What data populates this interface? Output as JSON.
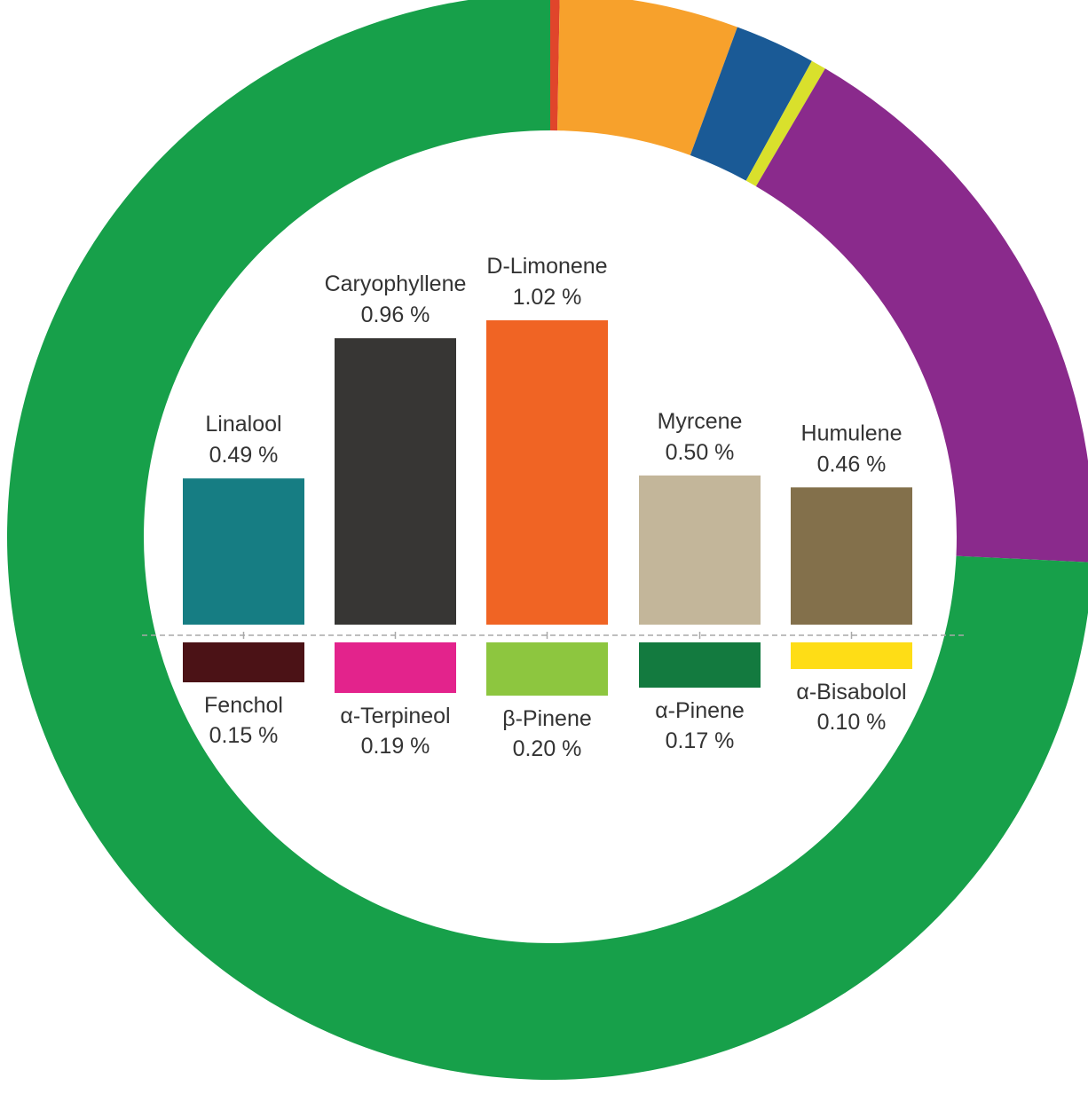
{
  "chart_data": [
    {
      "type": "pie",
      "variant": "donut",
      "title": "",
      "slices": [
        {
          "value": 0.28,
          "color": "#e0452b"
        },
        {
          "value": 5.32,
          "color": "#f7a12c"
        },
        {
          "value": 2.4,
          "color": "#1a5a96"
        },
        {
          "value": 0.45,
          "color": "#d9e02c"
        },
        {
          "value": 17.3,
          "color": "#8a2a8c"
        },
        {
          "value": 74.25,
          "color": "#17a04a"
        }
      ]
    },
    {
      "type": "bar",
      "title": "",
      "xlabel": "",
      "ylabel": "",
      "unit": "%",
      "grid": false,
      "baseline": "dashed",
      "layout": "diverging",
      "ylim_up": [
        0,
        1.02
      ],
      "ylim_down": [
        0,
        0.2
      ],
      "upper": {
        "categories": [
          "Linalool",
          "Caryophyllene",
          "D-Limonene",
          "Myrcene",
          "Humulene"
        ],
        "values": [
          0.49,
          0.96,
          1.02,
          0.5,
          0.46
        ],
        "value_labels": [
          "0.49 %",
          "0.96 %",
          "1.02 %",
          "0.50 %",
          "0.46 %"
        ],
        "colors": [
          "#167d83",
          "#373634",
          "#f06424",
          "#c3b69a",
          "#83704b"
        ]
      },
      "lower": {
        "categories": [
          "Fenchol",
          "α-Terpineol",
          "β-Pinene",
          "α-Pinene",
          "α-Bisabolol"
        ],
        "values": [
          0.15,
          0.19,
          0.2,
          0.17,
          0.1
        ],
        "value_labels": [
          "0.15 %",
          "0.19 %",
          "0.20 %",
          "0.17 %",
          "0.10 %"
        ],
        "colors": [
          "#4b1216",
          "#e3238c",
          "#8dc63f",
          "#137a3f",
          "#fedd16"
        ]
      }
    }
  ]
}
